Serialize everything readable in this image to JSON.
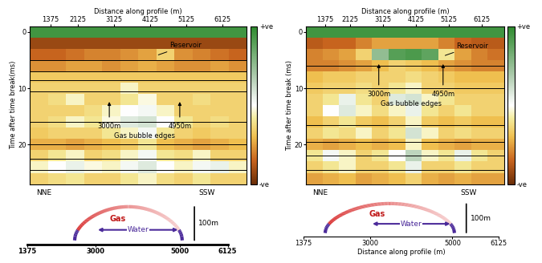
{
  "chart_data": [
    {
      "type": "heatmap",
      "x_label": "Distance along profile (m)",
      "y_label": "Time after time break(ms)",
      "xlim": [
        800,
        6800
      ],
      "xticks": [
        1375,
        2125,
        3125,
        4125,
        5125,
        6125
      ],
      "ylim": [
        27,
        -1
      ],
      "yticks": [
        0,
        10,
        20
      ],
      "x_edges": [
        800,
        1300,
        1800,
        2300,
        2800,
        3300,
        3800,
        4300,
        4800,
        5300,
        5800,
        6300,
        6800
      ],
      "y_edges": [
        -1,
        1,
        3,
        5,
        7,
        9,
        11,
        13,
        15,
        17,
        19,
        21,
        23,
        25,
        27
      ],
      "cells": [
        [
          0.9,
          0.9,
          0.9,
          0.9,
          0.9,
          0.9,
          0.9,
          0.9,
          0.9,
          0.9,
          0.9,
          0.9
        ],
        [
          -0.85,
          -0.85,
          -0.85,
          -0.85,
          -0.85,
          -0.85,
          -0.85,
          -0.85,
          -0.85,
          -0.85,
          -0.85,
          -0.85
        ],
        [
          -0.7,
          -0.7,
          -0.65,
          -0.6,
          -0.6,
          -0.55,
          -0.5,
          -0.3,
          -0.55,
          -0.6,
          -0.65,
          -0.7
        ],
        [
          -0.55,
          -0.55,
          -0.5,
          -0.5,
          -0.55,
          -0.5,
          -0.45,
          -0.5,
          -0.55,
          -0.55,
          -0.5,
          -0.55
        ],
        [
          -0.35,
          -0.35,
          -0.35,
          -0.35,
          -0.35,
          -0.35,
          -0.35,
          -0.35,
          -0.35,
          -0.35,
          -0.35,
          -0.35
        ],
        [
          -0.3,
          -0.3,
          -0.3,
          -0.3,
          -0.3,
          -0.1,
          -0.3,
          -0.3,
          -0.3,
          -0.3,
          -0.3,
          -0.3
        ],
        [
          -0.3,
          -0.25,
          -0.1,
          -0.3,
          -0.3,
          -0.2,
          -0.05,
          -0.3,
          -0.3,
          -0.25,
          -0.3,
          -0.3
        ],
        [
          -0.3,
          -0.3,
          -0.3,
          -0.25,
          -0.1,
          0.0,
          0.05,
          -0.1,
          -0.3,
          -0.3,
          -0.3,
          -0.3
        ],
        [
          -0.3,
          -0.25,
          -0.1,
          -0.2,
          -0.05,
          0.15,
          0.2,
          0.0,
          -0.2,
          -0.3,
          -0.25,
          -0.3
        ],
        [
          -0.35,
          -0.3,
          -0.3,
          -0.3,
          -0.2,
          -0.1,
          0.05,
          -0.2,
          -0.3,
          -0.35,
          -0.3,
          -0.3
        ],
        [
          -0.45,
          -0.45,
          -0.5,
          -0.45,
          -0.4,
          -0.35,
          -0.2,
          -0.4,
          -0.45,
          -0.5,
          -0.45,
          -0.4
        ],
        [
          -0.3,
          -0.2,
          -0.1,
          -0.3,
          -0.25,
          -0.1,
          0.05,
          -0.2,
          -0.25,
          -0.1,
          -0.3,
          -0.3
        ],
        [
          -0.1,
          0.0,
          0.1,
          -0.05,
          -0.1,
          0.05,
          0.15,
          0.0,
          -0.1,
          0.05,
          0.1,
          -0.1
        ],
        [
          -0.3,
          -0.25,
          -0.2,
          -0.3,
          -0.3,
          -0.2,
          -0.1,
          -0.25,
          -0.3,
          -0.2,
          -0.3,
          -0.3
        ]
      ],
      "colorbar": {
        "range": [
          -1,
          1
        ],
        "ticks": [
          {
            "value": 1,
            "label": "+ve"
          },
          {
            "value": -1,
            "label": "-ve"
          }
        ]
      },
      "horizons": [
        5,
        7,
        8.5,
        10.5,
        16,
        20,
        22.5,
        24.5
      ],
      "reservoir": {
        "text": "Reservoir",
        "x": 4300,
        "y": 4.2
      },
      "bubble_edges": {
        "text": "Gas bubble edges",
        "x": [
          3000,
          4950
        ],
        "labels": [
          "3000m",
          "4950m"
        ],
        "y": [
          15.5,
          12
        ]
      },
      "directions": [
        "NNE",
        "SSW"
      ]
    },
    {
      "type": "heatmap",
      "x_label": "Distance along profile (m)",
      "y_label": "Time after time break (ms)",
      "xlim": [
        800,
        6800
      ],
      "xticks": [
        1375,
        2125,
        3125,
        4125,
        5125,
        6125
      ],
      "ylim": [
        27,
        -1
      ],
      "yticks": [
        0,
        10,
        20
      ],
      "x_edges": [
        800,
        1300,
        1800,
        2300,
        2800,
        3300,
        3800,
        4300,
        4800,
        5300,
        5800,
        6300,
        6800
      ],
      "y_edges": [
        -1,
        1,
        3,
        5,
        7,
        9,
        11,
        13,
        15,
        17,
        19,
        21,
        23,
        25,
        27
      ],
      "cells": [
        [
          0.9,
          0.9,
          0.9,
          0.9,
          0.9,
          0.9,
          0.9,
          0.9,
          0.9,
          0.9,
          0.9,
          0.9
        ],
        [
          -0.75,
          -0.7,
          -0.7,
          -0.6,
          -0.5,
          -0.5,
          -0.5,
          -0.5,
          -0.6,
          -0.7,
          -0.75,
          -0.75
        ],
        [
          -0.6,
          -0.55,
          -0.5,
          -0.3,
          0.5,
          0.8,
          0.85,
          0.75,
          -0.2,
          -0.5,
          -0.6,
          -0.65
        ],
        [
          -0.6,
          -0.6,
          -0.55,
          -0.5,
          -0.4,
          -0.3,
          -0.35,
          -0.4,
          -0.5,
          -0.55,
          -0.6,
          -0.6
        ],
        [
          -0.4,
          -0.35,
          -0.35,
          -0.3,
          -0.3,
          -0.3,
          -0.25,
          -0.3,
          -0.35,
          -0.4,
          -0.4,
          -0.4
        ],
        [
          -0.35,
          -0.3,
          -0.3,
          -0.25,
          -0.3,
          -0.2,
          -0.1,
          -0.3,
          -0.3,
          -0.35,
          -0.35,
          -0.35
        ],
        [
          -0.3,
          -0.2,
          0.1,
          -0.2,
          -0.3,
          0.15,
          0.2,
          -0.1,
          -0.2,
          -0.3,
          -0.3,
          -0.3
        ],
        [
          -0.3,
          0.0,
          0.15,
          -0.1,
          -0.25,
          -0.1,
          0.1,
          -0.2,
          -0.3,
          -0.2,
          -0.3,
          -0.3
        ],
        [
          -0.4,
          -0.3,
          -0.2,
          -0.35,
          -0.4,
          -0.3,
          -0.1,
          -0.35,
          -0.4,
          -0.35,
          -0.4,
          -0.4
        ],
        [
          -0.3,
          -0.2,
          -0.25,
          -0.1,
          -0.3,
          -0.2,
          0.2,
          -0.1,
          -0.3,
          -0.25,
          -0.3,
          -0.3
        ],
        [
          -0.45,
          -0.5,
          -0.45,
          -0.4,
          -0.45,
          -0.4,
          -0.1,
          -0.4,
          -0.45,
          -0.5,
          -0.45,
          -0.45
        ],
        [
          -0.2,
          0.05,
          -0.1,
          -0.3,
          -0.2,
          0.0,
          0.3,
          -0.1,
          -0.2,
          0.1,
          -0.2,
          -0.3
        ],
        [
          -0.3,
          -0.2,
          -0.1,
          -0.3,
          -0.3,
          -0.2,
          0.1,
          -0.3,
          -0.3,
          -0.2,
          -0.3,
          -0.3
        ],
        [
          -0.5,
          -0.45,
          -0.4,
          -0.5,
          -0.45,
          -0.4,
          -0.3,
          -0.45,
          -0.5,
          -0.45,
          -0.5,
          -0.5
        ]
      ],
      "colorbar": {
        "range": [
          -1,
          1
        ],
        "ticks": [
          {
            "value": 1,
            "label": "+ve"
          },
          {
            "value": -1,
            "label": "-ve"
          }
        ]
      },
      "horizons": [
        6,
        10,
        16.5,
        19.5,
        22,
        24.5
      ],
      "reservoir": {
        "text": "Reservoir",
        "x": 4950,
        "y": 4.3
      },
      "bubble_edges": {
        "text": "Gas bubble edges",
        "x": [
          3000,
          4950
        ],
        "labels": [
          "3000m",
          "4950m"
        ],
        "y": [
          9.8,
          5.3
        ]
      },
      "directions": [
        "NNE",
        "SSW"
      ]
    },
    {
      "type": "diagram",
      "xlim": [
        1375,
        6125
      ],
      "xticks": [
        1375,
        3000,
        5000,
        6125
      ],
      "structure": [
        2500,
        5050
      ],
      "gas_water_contact": [
        3000,
        5000
      ],
      "gas_label": "Gas",
      "water_label": "Water",
      "scale_label": "100m"
    },
    {
      "type": "diagram",
      "x_label": "Distance along profile (m)",
      "xlim": [
        1375,
        6125
      ],
      "xticks": [
        1375,
        3000,
        5000,
        6125
      ],
      "structure": [
        1900,
        5050
      ],
      "gas_water_contact": [
        3000,
        5000
      ],
      "gas_label": "Gas",
      "water_label": "Water",
      "scale_label": "100m"
    }
  ]
}
